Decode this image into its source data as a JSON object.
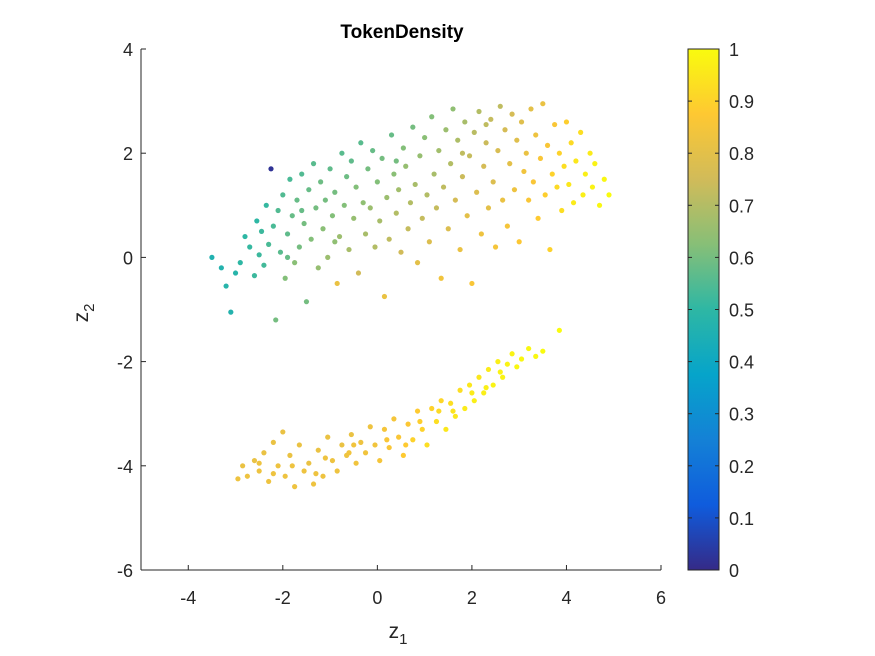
{
  "chart_data": {
    "type": "scatter",
    "title": "TokenDensity",
    "xlabel": {
      "base": "z",
      "sub": "1"
    },
    "ylabel": {
      "base": "z",
      "sub": "2"
    },
    "xlim": [
      -5,
      6
    ],
    "ylim": [
      -6,
      4
    ],
    "xticks": [
      -4,
      -2,
      0,
      2,
      4,
      6
    ],
    "yticks": [
      -6,
      -4,
      -2,
      0,
      2,
      4
    ],
    "grid": false,
    "colormap": "parula",
    "colorbar": {
      "range": [
        0,
        1
      ],
      "ticks": [
        0,
        0.1,
        0.2,
        0.3,
        0.4,
        0.5,
        0.6,
        0.7,
        0.8,
        0.9,
        1
      ],
      "tick_labels": [
        "0",
        "0.1",
        "0.2",
        "0.3",
        "0.4",
        "0.5",
        "0.6",
        "0.7",
        "0.8",
        "0.9",
        "1"
      ],
      "stops": [
        "#352a87",
        "#0f5cdd",
        "#1481d6",
        "#06a4ca",
        "#2eb7a4",
        "#87bf77",
        "#d1bb59",
        "#fec832",
        "#f9fb0e"
      ]
    },
    "points": [
      [
        -3.5,
        0.0,
        0.46
      ],
      [
        -3.3,
        -0.2,
        0.47
      ],
      [
        -3.2,
        -0.55,
        0.48
      ],
      [
        -3.1,
        -1.05,
        0.47
      ],
      [
        -3.0,
        -0.3,
        0.48
      ],
      [
        -2.9,
        -0.1,
        0.5
      ],
      [
        -2.8,
        0.4,
        0.5
      ],
      [
        -2.7,
        0.2,
        0.51
      ],
      [
        -2.6,
        -0.35,
        0.52
      ],
      [
        -2.55,
        0.7,
        0.5
      ],
      [
        -2.5,
        0.05,
        0.52
      ],
      [
        -2.45,
        0.5,
        0.52
      ],
      [
        -2.4,
        -0.15,
        0.53
      ],
      [
        -2.35,
        1.0,
        0.51
      ],
      [
        -2.3,
        0.25,
        0.54
      ],
      [
        -2.25,
        1.7,
        0.02
      ],
      [
        -2.2,
        0.6,
        0.54
      ],
      [
        -2.15,
        -1.2,
        0.6
      ],
      [
        -2.1,
        0.9,
        0.55
      ],
      [
        -2.05,
        0.1,
        0.56
      ],
      [
        -2.0,
        1.2,
        0.55
      ],
      [
        -1.95,
        -0.4,
        0.62
      ],
      [
        -1.9,
        0.45,
        0.57
      ],
      [
        -1.85,
        1.5,
        0.54
      ],
      [
        -1.8,
        0.8,
        0.58
      ],
      [
        -1.75,
        -0.1,
        0.63
      ],
      [
        -1.7,
        1.1,
        0.58
      ],
      [
        -1.65,
        0.2,
        0.6
      ],
      [
        -1.6,
        1.6,
        0.55
      ],
      [
        -1.55,
        0.65,
        0.6
      ],
      [
        -1.5,
        -0.85,
        0.6
      ],
      [
        -1.45,
        1.3,
        0.58
      ],
      [
        -1.4,
        0.35,
        0.62
      ],
      [
        -1.35,
        1.8,
        0.56
      ],
      [
        -1.3,
        0.95,
        0.6
      ],
      [
        -1.25,
        -0.2,
        0.65
      ],
      [
        -1.2,
        1.45,
        0.59
      ],
      [
        -1.15,
        0.55,
        0.63
      ],
      [
        -1.1,
        1.1,
        0.6
      ],
      [
        -1.05,
        0.0,
        0.66
      ],
      [
        -1.0,
        1.7,
        0.57
      ],
      [
        -0.95,
        0.8,
        0.62
      ],
      [
        -0.9,
        1.25,
        0.6
      ],
      [
        -0.85,
        -0.5,
        0.82
      ],
      [
        -0.8,
        0.4,
        0.66
      ],
      [
        -0.75,
        2.0,
        0.56
      ],
      [
        -0.7,
        1.0,
        0.62
      ],
      [
        -0.65,
        1.55,
        0.59
      ],
      [
        -0.6,
        0.15,
        0.68
      ],
      [
        -0.55,
        1.85,
        0.57
      ],
      [
        -0.5,
        0.75,
        0.65
      ],
      [
        -0.45,
        1.35,
        0.62
      ],
      [
        -0.4,
        -0.3,
        0.75
      ],
      [
        -0.35,
        2.2,
        0.56
      ],
      [
        -0.3,
        1.05,
        0.64
      ],
      [
        -0.25,
        0.45,
        0.68
      ],
      [
        -0.2,
        1.7,
        0.6
      ],
      [
        -0.15,
        0.95,
        0.66
      ],
      [
        -0.1,
        2.05,
        0.58
      ],
      [
        -0.05,
        0.2,
        0.7
      ],
      [
        0.0,
        1.45,
        0.62
      ],
      [
        0.05,
        0.7,
        0.68
      ],
      [
        0.1,
        1.9,
        0.6
      ],
      [
        0.15,
        -0.75,
        0.82
      ],
      [
        0.2,
        1.15,
        0.66
      ],
      [
        0.25,
        0.35,
        0.72
      ],
      [
        0.3,
        2.35,
        0.58
      ],
      [
        0.35,
        1.6,
        0.63
      ],
      [
        0.4,
        0.85,
        0.7
      ],
      [
        0.45,
        1.3,
        0.67
      ],
      [
        0.5,
        0.1,
        0.75
      ],
      [
        0.55,
        2.1,
        0.62
      ],
      [
        0.6,
        1.75,
        0.65
      ],
      [
        0.65,
        0.55,
        0.73
      ],
      [
        0.7,
        1.05,
        0.7
      ],
      [
        0.75,
        2.5,
        0.6
      ],
      [
        0.8,
        1.4,
        0.68
      ],
      [
        0.85,
        -0.1,
        0.8
      ],
      [
        0.9,
        1.95,
        0.65
      ],
      [
        0.95,
        0.75,
        0.73
      ],
      [
        1.0,
        2.3,
        0.63
      ],
      [
        1.05,
        1.2,
        0.7
      ],
      [
        1.1,
        0.3,
        0.78
      ],
      [
        1.15,
        2.7,
        0.62
      ],
      [
        1.2,
        1.6,
        0.68
      ],
      [
        1.25,
        0.95,
        0.73
      ],
      [
        1.3,
        2.05,
        0.67
      ],
      [
        1.35,
        -0.4,
        0.84
      ],
      [
        1.4,
        1.35,
        0.72
      ],
      [
        1.45,
        2.45,
        0.66
      ],
      [
        1.5,
        0.55,
        0.78
      ],
      [
        1.55,
        1.8,
        0.7
      ],
      [
        1.6,
        2.85,
        0.64
      ],
      [
        1.65,
        1.1,
        0.76
      ],
      [
        1.7,
        2.25,
        0.69
      ],
      [
        1.75,
        0.15,
        0.82
      ],
      [
        1.8,
        1.55,
        0.74
      ],
      [
        1.85,
        2.6,
        0.68
      ],
      [
        1.9,
        0.8,
        0.8
      ],
      [
        1.95,
        1.95,
        0.73
      ],
      [
        2.0,
        -0.5,
        0.86
      ],
      [
        2.05,
        2.4,
        0.71
      ],
      [
        2.1,
        1.25,
        0.78
      ],
      [
        2.15,
        2.8,
        0.7
      ],
      [
        2.2,
        0.45,
        0.83
      ],
      [
        2.25,
        1.75,
        0.76
      ],
      [
        2.3,
        2.2,
        0.74
      ],
      [
        2.35,
        0.95,
        0.8
      ],
      [
        2.4,
        2.65,
        0.73
      ],
      [
        2.45,
        1.45,
        0.78
      ],
      [
        2.5,
        0.2,
        0.85
      ],
      [
        2.55,
        2.05,
        0.77
      ],
      [
        2.6,
        2.9,
        0.72
      ],
      [
        2.65,
        1.1,
        0.82
      ],
      [
        2.7,
        2.45,
        0.76
      ],
      [
        2.75,
        0.6,
        0.85
      ],
      [
        2.8,
        1.8,
        0.8
      ],
      [
        2.85,
        2.75,
        0.76
      ],
      [
        2.9,
        1.3,
        0.83
      ],
      [
        2.95,
        2.25,
        0.79
      ],
      [
        3.0,
        0.3,
        0.87
      ],
      [
        3.05,
        2.6,
        0.79
      ],
      [
        3.1,
        1.65,
        0.84
      ],
      [
        3.15,
        2.0,
        0.82
      ],
      [
        3.2,
        1.1,
        0.86
      ],
      [
        3.25,
        2.85,
        0.8
      ],
      [
        3.3,
        1.45,
        0.86
      ],
      [
        3.35,
        2.35,
        0.83
      ],
      [
        3.4,
        0.75,
        0.88
      ],
      [
        3.45,
        1.9,
        0.86
      ],
      [
        3.5,
        2.95,
        0.82
      ],
      [
        3.55,
        1.2,
        0.89
      ],
      [
        3.6,
        2.15,
        0.86
      ],
      [
        3.65,
        0.15,
        0.9
      ],
      [
        3.7,
        1.6,
        0.9
      ],
      [
        3.75,
        2.55,
        0.86
      ],
      [
        3.8,
        1.35,
        0.92
      ],
      [
        3.85,
        2.0,
        0.9
      ],
      [
        3.9,
        0.9,
        0.93
      ],
      [
        3.95,
        1.75,
        0.93
      ],
      [
        4.0,
        2.6,
        0.89
      ],
      [
        4.05,
        1.4,
        0.95
      ],
      [
        4.1,
        2.2,
        0.92
      ],
      [
        4.15,
        1.05,
        0.96
      ],
      [
        4.2,
        1.85,
        0.95
      ],
      [
        4.3,
        2.4,
        0.93
      ],
      [
        4.35,
        1.2,
        0.97
      ],
      [
        4.4,
        1.6,
        0.97
      ],
      [
        4.5,
        2.0,
        0.96
      ],
      [
        4.55,
        1.35,
        0.98
      ],
      [
        4.6,
        1.8,
        0.98
      ],
      [
        4.7,
        1.0,
        0.99
      ],
      [
        4.8,
        1.5,
        0.99
      ],
      [
        4.9,
        1.2,
        1.0
      ],
      [
        -1.9,
        0.0,
        0.58
      ],
      [
        -1.6,
        0.9,
        0.58
      ],
      [
        -0.9,
        0.3,
        0.64
      ],
      [
        0.4,
        1.85,
        0.6
      ],
      [
        1.8,
        2.0,
        0.72
      ],
      [
        2.3,
        2.55,
        0.72
      ],
      [
        -2.95,
        -4.25,
        0.83
      ],
      [
        -2.85,
        -4.0,
        0.82
      ],
      [
        -2.75,
        -4.2,
        0.83
      ],
      [
        -2.6,
        -3.9,
        0.82
      ],
      [
        -2.5,
        -4.1,
        0.83
      ],
      [
        -2.4,
        -3.75,
        0.82
      ],
      [
        -2.3,
        -4.3,
        0.83
      ],
      [
        -2.2,
        -3.55,
        0.82
      ],
      [
        -2.1,
        -4.0,
        0.83
      ],
      [
        -2.0,
        -3.35,
        0.82
      ],
      [
        -1.95,
        -4.2,
        0.83
      ],
      [
        -1.85,
        -3.8,
        0.82
      ],
      [
        -1.75,
        -4.4,
        0.83
      ],
      [
        -1.65,
        -3.6,
        0.82
      ],
      [
        -1.55,
        -4.1,
        0.83
      ],
      [
        -1.45,
        -3.95,
        0.82
      ],
      [
        -1.35,
        -4.35,
        0.83
      ],
      [
        -1.25,
        -3.7,
        0.82
      ],
      [
        -1.15,
        -4.2,
        0.83
      ],
      [
        -1.05,
        -3.45,
        0.82
      ],
      [
        -0.95,
        -3.9,
        0.83
      ],
      [
        -0.85,
        -4.1,
        0.83
      ],
      [
        -0.75,
        -3.6,
        0.82
      ],
      [
        -0.65,
        -3.8,
        0.83
      ],
      [
        -0.55,
        -3.4,
        0.82
      ],
      [
        -0.45,
        -3.95,
        0.84
      ],
      [
        -0.35,
        -3.55,
        0.83
      ],
      [
        -0.25,
        -3.75,
        0.84
      ],
      [
        -0.15,
        -3.25,
        0.83
      ],
      [
        -0.05,
        -3.6,
        0.84
      ],
      [
        0.05,
        -3.9,
        0.85
      ],
      [
        0.15,
        -3.3,
        0.85
      ],
      [
        0.25,
        -3.65,
        0.86
      ],
      [
        0.35,
        -3.1,
        0.85
      ],
      [
        0.45,
        -3.45,
        0.86
      ],
      [
        0.55,
        -3.8,
        0.88
      ],
      [
        0.65,
        -3.2,
        0.87
      ],
      [
        0.75,
        -3.5,
        0.9
      ],
      [
        0.85,
        -2.95,
        0.88
      ],
      [
        0.95,
        -3.3,
        0.9
      ],
      [
        1.05,
        -3.6,
        0.93
      ],
      [
        1.15,
        -2.9,
        0.9
      ],
      [
        1.25,
        -3.15,
        0.93
      ],
      [
        1.35,
        -2.75,
        0.91
      ],
      [
        1.45,
        -3.3,
        0.95
      ],
      [
        1.55,
        -2.8,
        0.93
      ],
      [
        1.65,
        -3.05,
        0.95
      ],
      [
        1.75,
        -2.55,
        0.93
      ],
      [
        1.85,
        -2.9,
        0.96
      ],
      [
        1.95,
        -2.45,
        0.95
      ],
      [
        2.05,
        -2.75,
        0.97
      ],
      [
        2.15,
        -2.3,
        0.95
      ],
      [
        2.25,
        -2.6,
        0.97
      ],
      [
        2.35,
        -2.15,
        0.96
      ],
      [
        2.45,
        -2.45,
        0.98
      ],
      [
        2.55,
        -2.0,
        0.97
      ],
      [
        2.65,
        -2.3,
        0.98
      ],
      [
        2.75,
        -2.05,
        0.98
      ],
      [
        2.85,
        -1.85,
        0.98
      ],
      [
        2.95,
        -2.1,
        0.99
      ],
      [
        3.05,
        -1.95,
        0.99
      ],
      [
        3.2,
        -1.75,
        0.99
      ],
      [
        3.35,
        -1.9,
        0.99
      ],
      [
        3.5,
        -1.8,
        1.0
      ],
      [
        3.85,
        -1.4,
        1.0
      ],
      [
        -2.5,
        -3.95,
        0.83
      ],
      [
        -1.8,
        -4.0,
        0.83
      ],
      [
        -1.1,
        -3.85,
        0.83
      ],
      [
        -0.5,
        -3.6,
        0.84
      ],
      [
        0.2,
        -3.5,
        0.86
      ],
      [
        0.9,
        -3.15,
        0.89
      ],
      [
        1.6,
        -2.95,
        0.94
      ],
      [
        2.3,
        -2.5,
        0.97
      ],
      [
        -2.2,
        -4.15,
        0.83
      ],
      [
        -1.3,
        -4.15,
        0.83
      ],
      [
        -0.6,
        -3.75,
        0.84
      ],
      [
        0.6,
        -3.6,
        0.88
      ],
      [
        1.3,
        -2.95,
        0.92
      ],
      [
        2.0,
        -2.6,
        0.96
      ],
      [
        2.6,
        -2.2,
        0.98
      ]
    ]
  }
}
